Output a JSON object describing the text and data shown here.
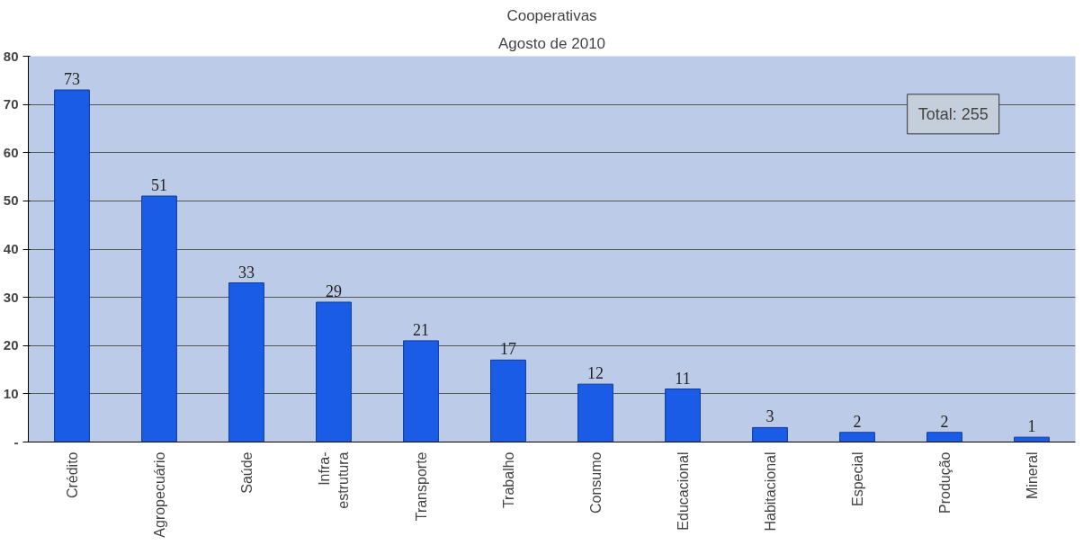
{
  "chart_data": {
    "type": "bar",
    "title": "Cooperativas",
    "subtitle": "Agosto de 2010",
    "categories": [
      "Crédito",
      "Agropecuário",
      "Saúde",
      "Infra-\nestrutura",
      "Transporte",
      "Trabalho",
      "Consumo",
      "Educacional",
      "Habitacional",
      "Especial",
      "Produção",
      "Mineral"
    ],
    "values": [
      73,
      51,
      33,
      29,
      21,
      17,
      12,
      11,
      3,
      2,
      2,
      1
    ],
    "color": "#1a5ce6",
    "ylim": [
      0,
      80
    ],
    "yticks": [
      {
        "value": 0,
        "label": "-"
      },
      10,
      20,
      30,
      40,
      50,
      60,
      70,
      80
    ],
    "grid": "y",
    "data_labels": true,
    "annotations": [
      "Total: 255"
    ]
  }
}
